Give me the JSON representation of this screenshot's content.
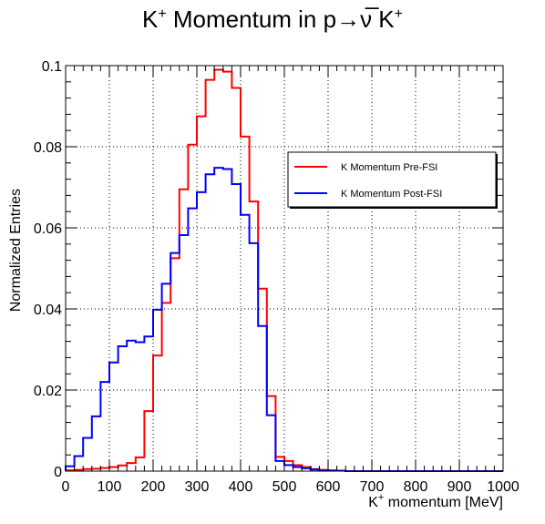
{
  "chart_data": {
    "type": "line",
    "style": "step-histogram",
    "title": "K⁺ Momentum in p→ν̅ K⁺",
    "xlabel": "K⁺ momentum [MeV]",
    "ylabel": "Normalized Entries",
    "xlim": [
      0,
      1000
    ],
    "ylim": [
      0,
      0.1
    ],
    "x_ticks": [
      "0",
      "100",
      "200",
      "300",
      "400",
      "500",
      "600",
      "700",
      "800",
      "900",
      "1000"
    ],
    "y_ticks": [
      "0",
      "0.02",
      "0.04",
      "0.06",
      "0.08",
      "0.1"
    ],
    "grid": true,
    "legend_position": "upper-right",
    "bin_edges": [
      0,
      20,
      40,
      60,
      80,
      100,
      120,
      140,
      160,
      180,
      200,
      220,
      240,
      260,
      280,
      300,
      320,
      340,
      360,
      380,
      400,
      420,
      440,
      460,
      480,
      500,
      520,
      540,
      560,
      580,
      600,
      620,
      640,
      660,
      680,
      700,
      720,
      740,
      760,
      780,
      800,
      820,
      840,
      860,
      880,
      900,
      920,
      940,
      960,
      980,
      1000
    ],
    "series": [
      {
        "name": "K Momentum Pre-FSI",
        "color": "#ff0000",
        "values": [
          0.0002,
          0.0003,
          0.0005,
          0.0006,
          0.0008,
          0.001,
          0.0014,
          0.002,
          0.0034,
          0.0148,
          0.0285,
          0.0415,
          0.0525,
          0.0695,
          0.0805,
          0.0875,
          0.0965,
          0.099,
          0.0985,
          0.0945,
          0.0825,
          0.0665,
          0.045,
          0.0185,
          0.0035,
          0.0025,
          0.0015,
          0.001,
          0.0005,
          0.0003,
          0.0002,
          0.0001,
          0,
          0,
          0,
          0,
          0,
          0,
          0,
          0,
          0,
          0,
          0,
          0,
          0,
          0,
          0,
          0,
          0,
          0
        ]
      },
      {
        "name": "K Momentum Post-FSI",
        "color": "#0000ff",
        "values": [
          0.0012,
          0.0037,
          0.0082,
          0.0135,
          0.022,
          0.0268,
          0.0308,
          0.0322,
          0.0318,
          0.0332,
          0.0398,
          0.0462,
          0.0538,
          0.0582,
          0.0648,
          0.0688,
          0.0732,
          0.0748,
          0.0745,
          0.0708,
          0.0632,
          0.0562,
          0.0358,
          0.0138,
          0.0025,
          0.0015,
          0.001,
          0.0007,
          0.0004,
          0.0002,
          0.0001,
          0.0001,
          0,
          0,
          0,
          0,
          0,
          0,
          0,
          0,
          0,
          0,
          0,
          0,
          0,
          0,
          0,
          0,
          0,
          0
        ]
      }
    ]
  }
}
